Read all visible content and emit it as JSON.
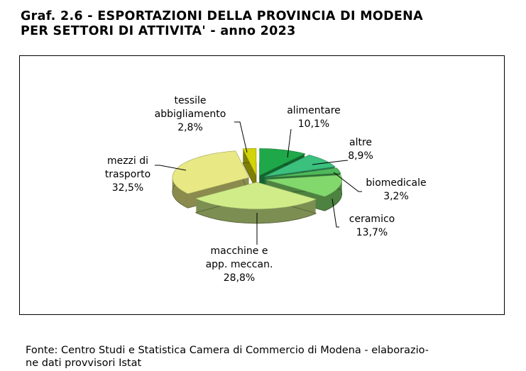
{
  "title_line1": "Graf. 2.6 - ESPORTAZIONI DELLA PROVINCIA DI MODENA",
  "title_line2": "PER SETTORI DI ATTIVITA' - anno 2023",
  "source_line1": "Fonte: Centro Studi e Statistica Camera di Commercio di Modena - elaborazio-",
  "source_line2": "ne dati provvisori Istat",
  "chart_data": {
    "type": "pie",
    "title": "ESPORTAZIONI DELLA PROVINCIA DI MODENA PER SETTORI DI ATTIVITA' - anno 2023",
    "unit": "%",
    "slices": [
      {
        "name": "alimentare",
        "label_lines": [
          "alimentare"
        ],
        "value": 10.1,
        "value_label": "10,1%",
        "color": "#1fa84a"
      },
      {
        "name": "altre",
        "label_lines": [
          "altre"
        ],
        "value": 8.9,
        "value_label": "8,9%",
        "color": "#3cc07e"
      },
      {
        "name": "biomedicale",
        "label_lines": [
          "biomedicale"
        ],
        "value": 3.2,
        "value_label": "3,2%",
        "color": "#4fb85a"
      },
      {
        "name": "ceramico",
        "label_lines": [
          "ceramico"
        ],
        "value": 13.7,
        "value_label": "13,7%",
        "color": "#82d86c"
      },
      {
        "name": "macchine e app. meccan.",
        "label_lines": [
          "macchine e",
          "app. meccan."
        ],
        "value": 28.8,
        "value_label": "28,8%",
        "color": "#cfec88"
      },
      {
        "name": "mezzi di trasporto",
        "label_lines": [
          "mezzi di",
          "trasporto"
        ],
        "value": 32.5,
        "value_label": "32,5%",
        "color": "#e8e884"
      },
      {
        "name": "tessile abbigliamento",
        "label_lines": [
          "tessile",
          "abbigliamento"
        ],
        "value": 2.8,
        "value_label": "2,8%",
        "color": "#d2d40a"
      }
    ]
  }
}
